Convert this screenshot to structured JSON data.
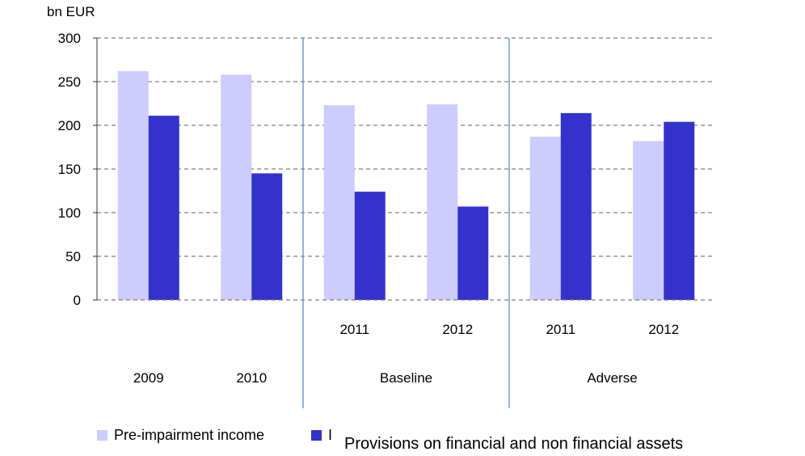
{
  "chart_data": {
    "type": "bar",
    "ylabel": "bn EUR",
    "ylim": [
      0,
      300
    ],
    "yticks": [
      0,
      50,
      100,
      150,
      200,
      250,
      300
    ],
    "grid": true,
    "legend_position": "bottom",
    "groups": [
      {
        "label": "",
        "categories": [
          "2009",
          "2010"
        ]
      },
      {
        "label": "Baseline",
        "categories": [
          "2011",
          "2012"
        ]
      },
      {
        "label": "Adverse",
        "categories": [
          "2011",
          "2012"
        ]
      }
    ],
    "category_labels": [
      "2009",
      "2010",
      "2011",
      "2012",
      "2011",
      "2012"
    ],
    "series": [
      {
        "name": "Pre-impairment income",
        "color": "#ccccff",
        "values": [
          262,
          258,
          223,
          224,
          187,
          182
        ]
      },
      {
        "name": "Provisions on financial and non financial assets",
        "color": "#3333cc",
        "values": [
          211,
          145,
          124,
          107,
          214,
          204
        ]
      }
    ]
  },
  "legend": {
    "items": [
      {
        "label": "Pre-impairment income",
        "color": "#ccccff"
      },
      {
        "label": "I",
        "color": "#3333cc"
      }
    ],
    "overlay_text": "Provisions on financial and non financial assets"
  }
}
